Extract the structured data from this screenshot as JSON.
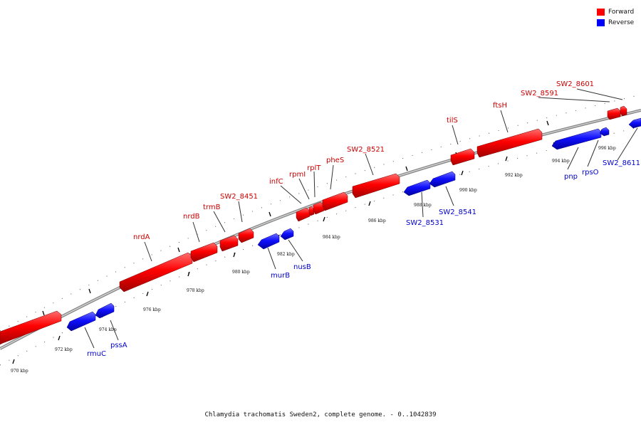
{
  "legend": {
    "forward_label": "Forward",
    "reverse_label": "Reverse",
    "forward_color": "#ff0000",
    "reverse_color": "#0000ff"
  },
  "footer_text": "Chlamydia trachomatis Sweden2, complete genome. - 0..1042839",
  "ticks": [
    "970 kbp",
    "972 kbp",
    "974 kbp",
    "976 kbp",
    "978 kbp",
    "980 kbp",
    "982 kbp",
    "984 kbp",
    "986 kbp",
    "988 kbp",
    "990 kbp",
    "992 kbp",
    "994 kbp",
    "996 kbp"
  ],
  "genes_forward": [
    "nrdA",
    "nrdB",
    "trmB",
    "SW2_8451",
    "infC",
    "rpmI",
    "rplT",
    "pheS",
    "SW2_8521",
    "tilS",
    "ftsH",
    "SW2_8591",
    "SW2_8601"
  ],
  "genes_reverse": [
    "rmuC",
    "pssA",
    "murB",
    "nusB",
    "SW2_8531",
    "SW2_8541",
    "pnp",
    "rpsO",
    "SW2_8611"
  ]
}
